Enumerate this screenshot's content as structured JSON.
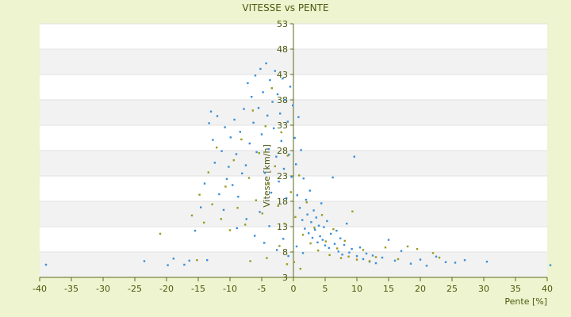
{
  "chart_data": {
    "type": "scatter",
    "title": "VITESSE vs PENTE",
    "xlabel": "Pente [%]",
    "ylabel": "Vitesse [km/h]",
    "xlim": [
      -40,
      40
    ],
    "ylim": [
      3,
      53
    ],
    "x_ticks": [
      -40,
      -35,
      -30,
      -25,
      -20,
      -15,
      -10,
      -5,
      0,
      5,
      10,
      15,
      20,
      25,
      30,
      35,
      40
    ],
    "y_ticks": [
      3,
      8,
      13,
      18,
      23,
      28,
      33,
      38,
      43,
      48,
      53
    ],
    "grid": true,
    "legend": "none",
    "colors": {
      "series_a": "#3a8fd6",
      "series_b": "#9a9a1e",
      "band": "#f2f2f2",
      "axis": "#5a6a1a"
    },
    "series": [
      {
        "color": "#3a8fd6",
        "points": [
          [
            -39.0,
            5.5
          ],
          [
            -23.5,
            6.2
          ],
          [
            -19.8,
            5.4
          ],
          [
            -18.9,
            6.7
          ],
          [
            -17.2,
            5.5
          ],
          [
            -16.4,
            6.3
          ],
          [
            -15.5,
            12.2
          ],
          [
            -14.6,
            16.8
          ],
          [
            -14.0,
            21.5
          ],
          [
            -13.6,
            6.4
          ],
          [
            -13.3,
            33.4
          ],
          [
            -13.0,
            35.7
          ],
          [
            -12.7,
            30.1
          ],
          [
            -12.4,
            25.6
          ],
          [
            -12.0,
            34.8
          ],
          [
            -11.7,
            19.4
          ],
          [
            -11.3,
            27.9
          ],
          [
            -11.0,
            16.3
          ],
          [
            -10.8,
            32.6
          ],
          [
            -10.5,
            22.4
          ],
          [
            -10.2,
            24.8
          ],
          [
            -9.9,
            30.6
          ],
          [
            -9.6,
            21.2
          ],
          [
            -9.3,
            34.1
          ],
          [
            -9.0,
            27.3
          ],
          [
            -8.7,
            18.9
          ],
          [
            -8.4,
            31.7
          ],
          [
            -8.1,
            23.5
          ],
          [
            -7.8,
            36.2
          ],
          [
            -7.5,
            25.1
          ],
          [
            -7.2,
            41.3
          ],
          [
            -6.9,
            29.4
          ],
          [
            -6.6,
            38.6
          ],
          [
            -6.3,
            33.5
          ],
          [
            -6.0,
            42.8
          ],
          [
            -5.8,
            27.7
          ],
          [
            -5.5,
            36.4
          ],
          [
            -5.2,
            44.1
          ],
          [
            -5.0,
            31.2
          ],
          [
            -4.8,
            39.5
          ],
          [
            -4.5,
            23.6
          ],
          [
            -4.3,
            45.2
          ],
          [
            -4.1,
            34.9
          ],
          [
            -3.9,
            28.3
          ],
          [
            -3.7,
            41.9
          ],
          [
            -3.5,
            19.7
          ],
          [
            -3.3,
            37.6
          ],
          [
            -3.1,
            32.4
          ],
          [
            -2.9,
            43.7
          ],
          [
            -2.7,
            26.8
          ],
          [
            -2.5,
            39.1
          ],
          [
            -2.3,
            21.9
          ],
          [
            -2.1,
            35.3
          ],
          [
            -1.9,
            29.9
          ],
          [
            -1.7,
            42.2
          ],
          [
            -1.5,
            24.4
          ],
          [
            -1.3,
            38.0
          ],
          [
            -1.1,
            18.6
          ],
          [
            -0.9,
            33.7
          ],
          [
            -0.7,
            27.2
          ],
          [
            -0.5,
            40.6
          ],
          [
            -0.3,
            22.8
          ],
          [
            -0.1,
            36.9
          ],
          [
            0.2,
            30.5
          ],
          [
            0.4,
            25.3
          ],
          [
            0.6,
            19.2
          ],
          [
            0.8,
            34.6
          ],
          [
            1.0,
            16.7
          ],
          [
            1.2,
            28.1
          ],
          [
            1.4,
            14.3
          ],
          [
            1.6,
            22.5
          ],
          [
            1.8,
            12.6
          ],
          [
            2.0,
            18.3
          ],
          [
            2.2,
            15.4
          ],
          [
            2.4,
            11.7
          ],
          [
            2.6,
            20.1
          ],
          [
            2.8,
            13.9
          ],
          [
            3.0,
            10.8
          ],
          [
            3.2,
            16.2
          ],
          [
            3.4,
            12.4
          ],
          [
            3.6,
            14.8
          ],
          [
            3.8,
            9.9
          ],
          [
            4.0,
            13.2
          ],
          [
            4.2,
            11.1
          ],
          [
            4.4,
            17.6
          ],
          [
            4.6,
            10.4
          ],
          [
            4.8,
            12.9
          ],
          [
            5.0,
            9.3
          ],
          [
            5.3,
            14.1
          ],
          [
            5.6,
            8.8
          ],
          [
            5.9,
            11.6
          ],
          [
            6.2,
            22.7
          ],
          [
            6.5,
            9.6
          ],
          [
            6.8,
            12.2
          ],
          [
            7.1,
            8.1
          ],
          [
            7.4,
            10.7
          ],
          [
            7.7,
            7.5
          ],
          [
            8.0,
            9.4
          ],
          [
            8.4,
            13.6
          ],
          [
            8.8,
            7.9
          ],
          [
            9.2,
            8.6
          ],
          [
            9.6,
            26.8
          ],
          [
            10.0,
            7.2
          ],
          [
            10.5,
            8.9
          ],
          [
            11.0,
            6.6
          ],
          [
            11.5,
            7.7
          ],
          [
            12.0,
            6.1
          ],
          [
            12.5,
            7.3
          ],
          [
            13.0,
            5.8
          ],
          [
            14.0,
            6.9
          ],
          [
            15.0,
            10.4
          ],
          [
            16.0,
            6.3
          ],
          [
            17.0,
            8.2
          ],
          [
            18.5,
            5.7
          ],
          [
            20.0,
            6.5
          ],
          [
            21.0,
            5.3
          ],
          [
            22.5,
            7.1
          ],
          [
            24.0,
            6.0
          ],
          [
            25.5,
            5.9
          ],
          [
            27.0,
            6.4
          ],
          [
            30.5,
            6.1
          ],
          [
            40.5,
            5.4
          ],
          [
            -8.9,
            12.7
          ],
          [
            -7.4,
            14.5
          ],
          [
            -6.1,
            11.2
          ],
          [
            -5.3,
            15.9
          ],
          [
            -4.6,
            9.8
          ],
          [
            -3.8,
            13.1
          ],
          [
            -2.6,
            8.4
          ],
          [
            -1.6,
            10.6
          ],
          [
            -0.8,
            7.2
          ],
          [
            0.5,
            9.1
          ],
          [
            1.5,
            7.8
          ]
        ]
      },
      {
        "color": "#9a9a1e",
        "points": [
          [
            -21.0,
            11.6
          ],
          [
            -16.0,
            15.2
          ],
          [
            -15.2,
            6.4
          ],
          [
            -14.8,
            19.3
          ],
          [
            -14.1,
            13.8
          ],
          [
            -13.4,
            23.7
          ],
          [
            -12.8,
            17.4
          ],
          [
            -12.1,
            28.6
          ],
          [
            -11.4,
            14.5
          ],
          [
            -10.7,
            20.9
          ],
          [
            -10.0,
            12.3
          ],
          [
            -9.4,
            26.1
          ],
          [
            -8.8,
            16.7
          ],
          [
            -8.2,
            30.2
          ],
          [
            -7.6,
            13.4
          ],
          [
            -7.0,
            22.6
          ],
          [
            -6.4,
            35.9
          ],
          [
            -5.9,
            18.2
          ],
          [
            -5.4,
            27.5
          ],
          [
            -4.9,
            15.6
          ],
          [
            -4.4,
            32.8
          ],
          [
            -3.9,
            21.4
          ],
          [
            -3.4,
            40.3
          ],
          [
            -2.9,
            24.9
          ],
          [
            -2.4,
            17.1
          ],
          [
            -1.9,
            31.6
          ],
          [
            -1.4,
            13.6
          ],
          [
            -0.9,
            27.0
          ],
          [
            -0.4,
            19.8
          ],
          [
            0.3,
            14.9
          ],
          [
            0.9,
            23.1
          ],
          [
            1.5,
            11.4
          ],
          [
            2.1,
            17.8
          ],
          [
            2.7,
            9.7
          ],
          [
            3.3,
            12.8
          ],
          [
            3.9,
            8.3
          ],
          [
            4.5,
            15.3
          ],
          [
            5.1,
            10.1
          ],
          [
            5.7,
            7.4
          ],
          [
            6.3,
            12.5
          ],
          [
            6.9,
            8.7
          ],
          [
            7.5,
            6.8
          ],
          [
            8.1,
            10.2
          ],
          [
            8.7,
            7.1
          ],
          [
            9.3,
            16.0
          ],
          [
            10.0,
            6.5
          ],
          [
            11.0,
            8.4
          ],
          [
            12.0,
            6.2
          ],
          [
            13.0,
            7.0
          ],
          [
            14.5,
            8.9
          ],
          [
            16.5,
            6.6
          ],
          [
            18.0,
            9.1
          ],
          [
            19.5,
            8.6
          ],
          [
            22.0,
            7.8
          ],
          [
            23.0,
            6.9
          ],
          [
            -6.8,
            6.2
          ],
          [
            -4.2,
            6.8
          ],
          [
            -2.2,
            9.2
          ],
          [
            -1.0,
            5.6
          ],
          [
            0.1,
            6.0
          ],
          [
            1.1,
            4.7
          ]
        ]
      }
    ]
  }
}
